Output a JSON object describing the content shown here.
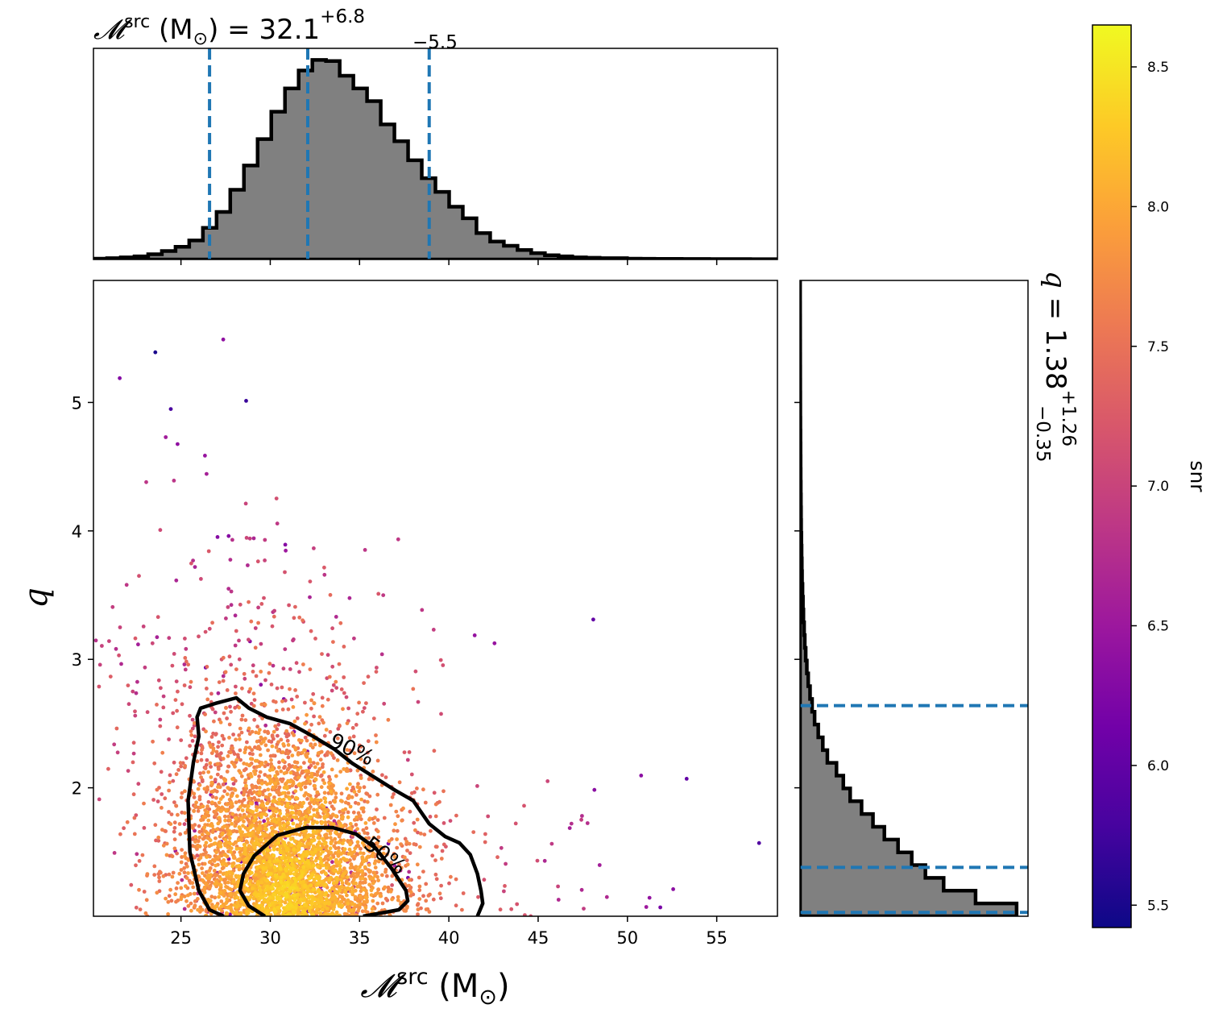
{
  "chart_data": [
    {
      "panel": "top-marginal",
      "type": "histogram",
      "title_symbol": "𝓜",
      "title_superscript": "src",
      "title_units": "(M",
      "title_units_subscript": "⊙",
      "title_units_close": ")",
      "title_equals": "=",
      "title_value": "32.1",
      "title_upper": "+6.8",
      "title_lower": "−5.5",
      "xlim": [
        20.1,
        58.4
      ],
      "bin_edges_start": 20.1,
      "bin_width": 0.766,
      "counts": [
        0.4,
        0.6,
        1.0,
        1.5,
        2.5,
        4.0,
        6.0,
        9.0,
        15.0,
        22.5,
        33.0,
        44.5,
        57.0,
        70.0,
        81.0,
        89.5,
        94.5,
        94.0,
        87.0,
        81.0,
        75.0,
        64.0,
        56.0,
        47.0,
        38.5,
        32.0,
        25.0,
        19.5,
        12.5,
        8.5,
        6.5,
        4.5,
        3.0,
        2.0,
        1.5,
        1.0,
        0.8,
        0.6,
        0.6,
        0.4,
        0.35,
        0.3,
        0.3,
        0.25,
        0.25,
        0.2,
        0.2,
        0.2,
        0.15,
        0.15
      ],
      "ylim": [
        0,
        100
      ],
      "quantile_lines": [
        26.6,
        32.1,
        38.9
      ],
      "xticks": [
        "25",
        "30",
        "35",
        "40",
        "45",
        "50",
        "55"
      ],
      "xtick_values": [
        25,
        30,
        35,
        40,
        45,
        50,
        55
      ]
    },
    {
      "panel": "main-scatter",
      "type": "scatter",
      "xlabel_symbol": "𝓜",
      "xlabel_superscript": "src",
      "xlabel_units": "(M",
      "xlabel_units_subscript": "⊙",
      "xlabel_units_close": ")",
      "ylabel": "q",
      "xlim": [
        20.1,
        58.4
      ],
      "ylim": [
        1.0,
        5.95
      ],
      "xticks": [
        "25",
        "30",
        "35",
        "40",
        "45",
        "50",
        "55"
      ],
      "xtick_values": [
        25,
        30,
        35,
        40,
        45,
        50,
        55
      ],
      "yticks": [
        "2",
        "3",
        "4",
        "5"
      ],
      "ytick_values": [
        2,
        3,
        4,
        5
      ],
      "color_variable": "snr",
      "points_summary": "dense cloud centred near chirp mass 31 and q 1.2, spreading to q ~6 and chirp mass ~58; colored by snr",
      "contours": [
        {
          "label": "90%",
          "points": [
            [
              27.4,
              1.0
            ],
            [
              26.6,
              1.05
            ],
            [
              26.0,
              1.2
            ],
            [
              25.5,
              1.5
            ],
            [
              25.4,
              1.9
            ],
            [
              25.7,
              2.2
            ],
            [
              26.0,
              2.4
            ],
            [
              25.9,
              2.55
            ],
            [
              26.1,
              2.62
            ],
            [
              27.0,
              2.66
            ],
            [
              28.1,
              2.7
            ],
            [
              28.8,
              2.62
            ],
            [
              29.8,
              2.55
            ],
            [
              31.1,
              2.5
            ],
            [
              32.4,
              2.4
            ],
            [
              33.6,
              2.3
            ],
            [
              34.6,
              2.19
            ],
            [
              35.4,
              2.12
            ],
            [
              36.2,
              2.05
            ],
            [
              37.0,
              1.98
            ],
            [
              38.0,
              1.9
            ],
            [
              38.9,
              1.72
            ],
            [
              39.8,
              1.62
            ],
            [
              40.6,
              1.57
            ],
            [
              41.2,
              1.48
            ],
            [
              41.6,
              1.33
            ],
            [
              41.8,
              1.2
            ],
            [
              41.9,
              1.1
            ],
            [
              41.6,
              1.0
            ]
          ]
        },
        {
          "label": "50%",
          "points": [
            [
              29.7,
              1.0
            ],
            [
              28.8,
              1.08
            ],
            [
              28.3,
              1.2
            ],
            [
              28.5,
              1.33
            ],
            [
              29.1,
              1.47
            ],
            [
              30.4,
              1.63
            ],
            [
              32.0,
              1.69
            ],
            [
              33.5,
              1.69
            ],
            [
              34.8,
              1.64
            ],
            [
              35.9,
              1.53
            ],
            [
              36.8,
              1.37
            ],
            [
              37.6,
              1.2
            ],
            [
              37.7,
              1.12
            ],
            [
              37.2,
              1.05
            ],
            [
              36.0,
              1.02
            ],
            [
              35.2,
              1.0
            ]
          ]
        }
      ],
      "contour_labels": [
        {
          "text": "90%",
          "x": 34.4,
          "y": 2.25,
          "rotation": 26
        },
        {
          "text": "50%",
          "x": 36.2,
          "y": 1.43,
          "rotation": 38
        }
      ]
    },
    {
      "panel": "right-marginal",
      "type": "histogram",
      "orientation": "horizontal",
      "title_symbol": "q",
      "title_equals": "=",
      "title_value": "1.38",
      "title_upper": "+1.26",
      "title_lower": "−0.35",
      "ylim": [
        1.0,
        5.95
      ],
      "bin_edges_start": 1.0,
      "bin_width": 0.0995,
      "counts": [
        95,
        77,
        63,
        55,
        49,
        43,
        37,
        32,
        27,
        22,
        19,
        16,
        12,
        10,
        8,
        6.4,
        5.3,
        4.4,
        3.6,
        3.0,
        2.5,
        2.1,
        1.8,
        1.5,
        1.3,
        1.1,
        0.9,
        0.8,
        0.7,
        0.6,
        0.5,
        0.45,
        0.4,
        0.35,
        0.3,
        0.27,
        0.24,
        0.21,
        0.18,
        0.15,
        0.14,
        0.12,
        0.11,
        0.1,
        0.09,
        0.08,
        0.07,
        0.06,
        0.05,
        0.05
      ],
      "xlim": [
        0,
        100
      ],
      "quantile_lines": [
        1.03,
        1.38,
        2.64
      ],
      "yticks": [
        "2",
        "3",
        "4",
        "5"
      ],
      "ytick_values": [
        2,
        3,
        4,
        5
      ]
    },
    {
      "panel": "colorbar",
      "type": "colorbar",
      "label": "snr",
      "range": [
        5.42,
        8.65
      ],
      "ticks": [
        "5.5",
        "6.0",
        "6.5",
        "7.0",
        "7.5",
        "8.0",
        "8.5"
      ],
      "tick_values": [
        5.5,
        6.0,
        6.5,
        7.0,
        7.5,
        8.0,
        8.5
      ],
      "colormap": "plasma"
    }
  ],
  "colors": {
    "hist_fill": "#808080",
    "hist_edge": "#000000",
    "quantile_line": "#1f77b4",
    "contour": "#000000",
    "plasma": [
      "#0d0887",
      "#46039f",
      "#7201a8",
      "#9c179e",
      "#bd3786",
      "#d8576b",
      "#ed7953",
      "#fb9f3a",
      "#fdca26",
      "#f0f921"
    ]
  }
}
